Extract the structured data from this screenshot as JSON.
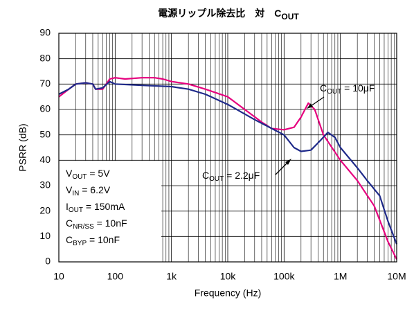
{
  "chart_data": {
    "type": "line",
    "title": [
      "電源リップル除去比　対　C",
      "OUT"
    ],
    "xlabel": "Frequency (Hz)",
    "ylabel": "PSRR (dB)",
    "xscale": "log",
    "xlim": [
      10,
      10000000
    ],
    "ylim": [
      0,
      90
    ],
    "xticks": [
      10,
      100,
      {
        "value": 1000,
        "label": "1k"
      },
      {
        "value": 10000,
        "label": "10k"
      },
      {
        "value": 100000,
        "label": "100k"
      },
      {
        "value": 1000000,
        "label": "1M"
      },
      {
        "value": 10000000,
        "label": "10M"
      }
    ],
    "xminorticks": [
      20,
      30,
      40,
      50,
      60,
      70,
      80,
      90,
      200,
      300,
      400,
      500,
      600,
      700,
      800,
      900,
      2000,
      3000,
      4000,
      5000,
      6000,
      7000,
      8000,
      9000,
      20000,
      30000,
      40000,
      50000,
      60000,
      70000,
      80000,
      90000,
      200000,
      300000,
      400000,
      500000,
      600000,
      700000,
      800000,
      900000,
      2000000,
      3000000,
      4000000,
      5000000,
      6000000,
      7000000,
      8000000,
      9000000
    ],
    "yticks": [
      0,
      10,
      20,
      30,
      40,
      50,
      60,
      70,
      80,
      90
    ],
    "grid": true,
    "series": [
      {
        "label": [
          "C",
          "OUT",
          " = 10μF"
        ],
        "color": "#e6007e",
        "x": [
          10,
          15,
          20,
          30,
          40,
          45,
          60,
          80,
          100,
          150,
          300,
          500,
          700,
          1000,
          2000,
          4000,
          10000,
          20000,
          40000,
          60000,
          100000,
          150000,
          200000,
          270000,
          350000,
          500000,
          1000000,
          2000000,
          4000000,
          7000000,
          10000000
        ],
        "values": [
          65,
          68,
          70,
          70.5,
          70,
          68,
          68,
          72,
          72.5,
          72,
          72.5,
          72.5,
          72,
          71,
          70,
          68,
          65,
          60,
          55,
          52.5,
          52,
          53,
          57,
          62.5,
          60,
          50,
          40,
          32,
          22,
          8,
          1
        ]
      },
      {
        "label": [
          "C",
          "OUT",
          " = 2.2μF"
        ],
        "color": "#1f2a8a",
        "x": [
          10,
          15,
          20,
          30,
          40,
          45,
          60,
          80,
          100,
          300,
          1000,
          2000,
          4000,
          10000,
          30000,
          100000,
          150000,
          200000,
          300000,
          450000,
          600000,
          800000,
          1000000,
          2000000,
          3000000,
          5000000,
          7000000,
          10000000
        ],
        "values": [
          66,
          68,
          70,
          70.5,
          70,
          68,
          68.5,
          71,
          70,
          69.5,
          69,
          68,
          66,
          62,
          56,
          50,
          45,
          43.5,
          44,
          48,
          51,
          49,
          45,
          37,
          32,
          26,
          16,
          7
        ]
      }
    ],
    "conditions": [
      [
        "V",
        "OUT",
        " = 5V"
      ],
      [
        "V",
        "IN",
        " = 6.2V"
      ],
      [
        "I",
        "OUT",
        " = 150mA"
      ],
      [
        "C",
        "NR/SS",
        " = 10nF"
      ],
      [
        "C",
        "BYP",
        " = 10nF"
      ]
    ]
  }
}
